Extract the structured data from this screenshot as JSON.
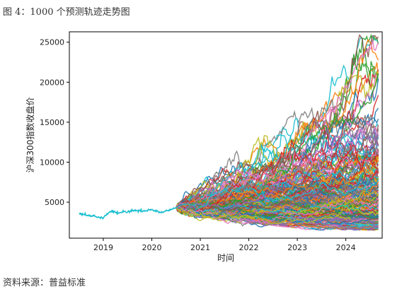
{
  "figure": {
    "title": "图 4：1000 个预测轨迹走势图",
    "source": "资料来源：普益标准"
  },
  "chart_data": {
    "type": "line",
    "title": "",
    "xlabel": "时间",
    "ylabel": "沪深300指数收盘价",
    "x_ticks": [
      "2019",
      "2020",
      "2021",
      "2022",
      "2023",
      "2024"
    ],
    "y_ticks": [
      5000,
      10000,
      15000,
      20000,
      25000
    ],
    "xlim": [
      2018.3,
      2024.75
    ],
    "ylim": [
      500,
      26300
    ],
    "grid": false,
    "legend": "none",
    "history": {
      "color": "#17becf",
      "x": [
        2018.5,
        2018.58,
        2018.67,
        2018.75,
        2018.83,
        2018.92,
        2019.0,
        2019.08,
        2019.17,
        2019.25,
        2019.33,
        2019.42,
        2019.5,
        2019.58,
        2019.67,
        2019.75,
        2019.83,
        2019.92,
        2020.0,
        2020.08,
        2020.17,
        2020.25,
        2020.33,
        2020.42,
        2020.5
      ],
      "y": [
        3600,
        3450,
        3350,
        3300,
        3200,
        3100,
        3000,
        3550,
        3900,
        3700,
        3650,
        3800,
        3750,
        3850,
        3900,
        3950,
        3900,
        4000,
        4100,
        3900,
        3700,
        3800,
        3950,
        4100,
        4350
      ]
    },
    "forecast": {
      "paths_count": 1000,
      "start_x": 2020.5,
      "start_y": 4350,
      "end_x": 2024.67,
      "observed_range_at_end": [
        1500,
        25500
      ]
    },
    "series_colors": [
      "#1f77b4",
      "#ff7f0e",
      "#2ca02c",
      "#d62728",
      "#9467bd",
      "#8c564b",
      "#e377c2",
      "#7f7f7f",
      "#bcbd22",
      "#17becf"
    ]
  }
}
